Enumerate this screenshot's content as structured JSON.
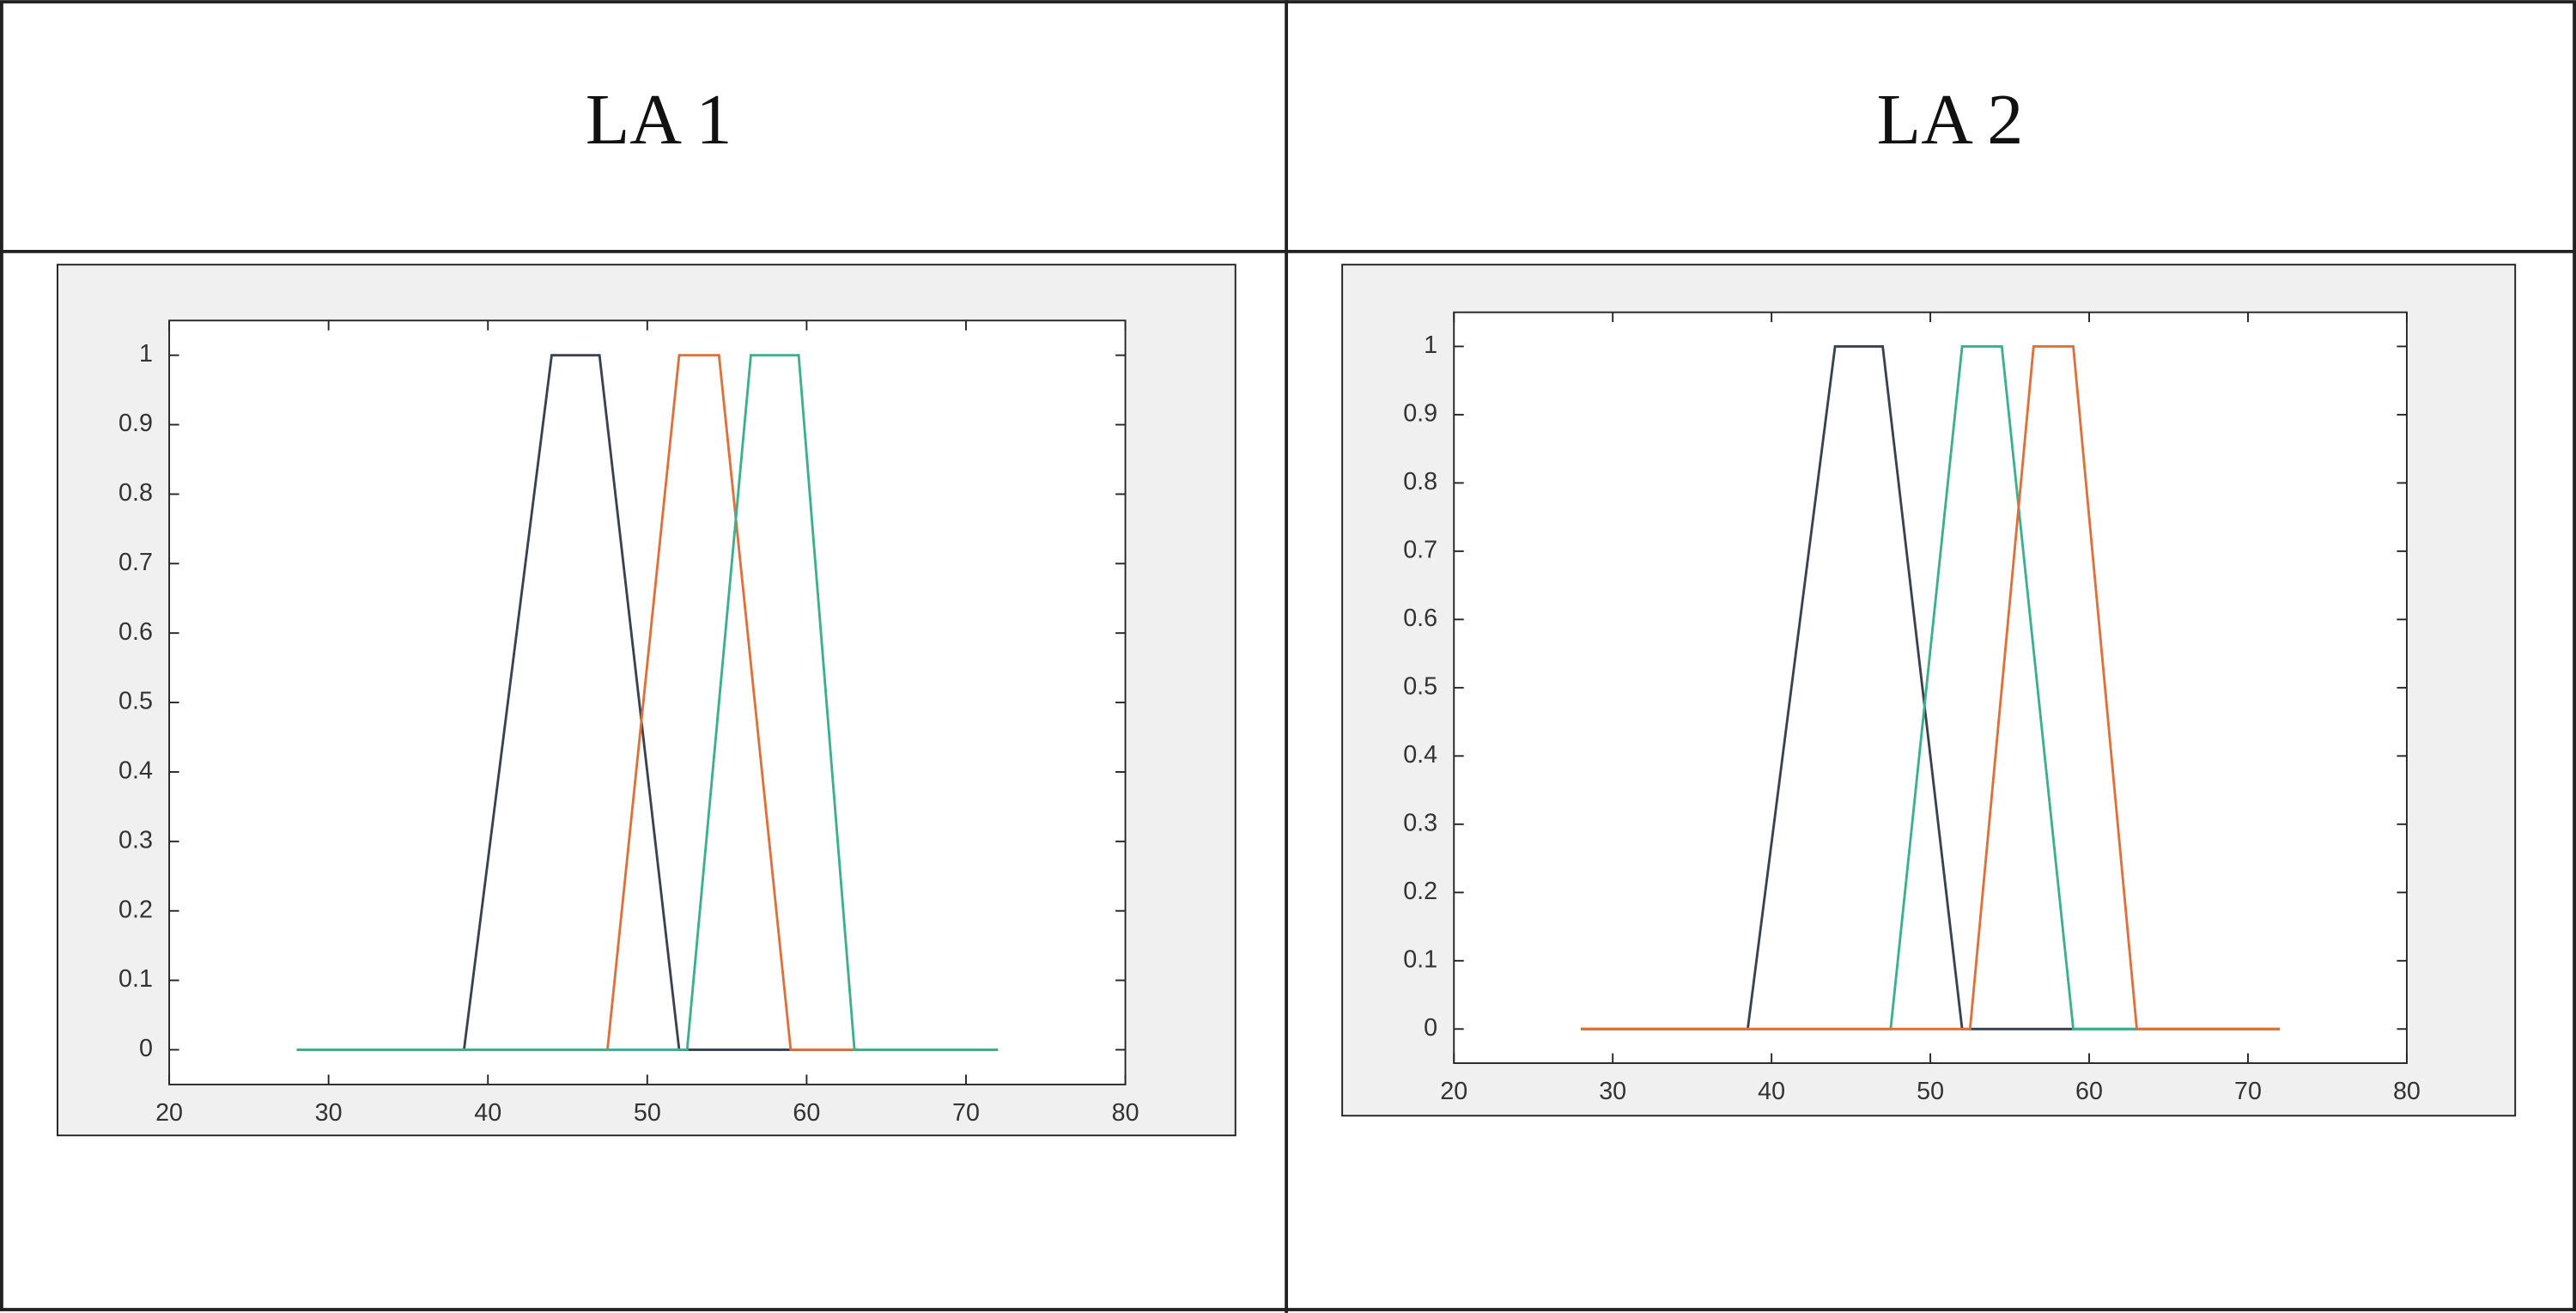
{
  "table": {
    "headers": [
      "LA 1",
      "LA 2"
    ]
  },
  "chart_data": [
    {
      "type": "line",
      "xlim": [
        20,
        80
      ],
      "ylim": [
        -0.05,
        1.05
      ],
      "xticks": [
        20,
        30,
        40,
        50,
        60,
        70,
        80
      ],
      "yticks": [
        0,
        0.1,
        0.2,
        0.3,
        0.4,
        0.5,
        0.6,
        0.7,
        0.8,
        0.9,
        1
      ],
      "series": [
        {
          "color": "#6ec6e8",
          "x": [
            28,
            72
          ],
          "values": [
            0,
            0
          ]
        },
        {
          "color": "#3a4250",
          "x": [
            28,
            38.5,
            44,
            47,
            52,
            72
          ],
          "values": [
            0,
            0,
            1,
            1,
            0,
            0
          ]
        },
        {
          "color": "#e0703a",
          "x": [
            28,
            47.5,
            52,
            54.5,
            59,
            72
          ],
          "values": [
            0,
            0,
            1,
            1,
            0,
            0
          ]
        },
        {
          "color": "#3cb08c",
          "x": [
            28,
            52.5,
            56.5,
            59.5,
            63,
            72
          ],
          "values": [
            0,
            0,
            1,
            1,
            0,
            0
          ]
        }
      ]
    },
    {
      "type": "line",
      "xlim": [
        20,
        80
      ],
      "ylim": [
        -0.05,
        1.05
      ],
      "xticks": [
        20,
        30,
        40,
        50,
        60,
        70,
        80
      ],
      "yticks": [
        0,
        0.1,
        0.2,
        0.3,
        0.4,
        0.5,
        0.6,
        0.7,
        0.8,
        0.9,
        1
      ],
      "series": [
        {
          "color": "#6ec6e8",
          "x": [
            28,
            72
          ],
          "values": [
            0,
            0
          ]
        },
        {
          "color": "#3a4250",
          "x": [
            28,
            38.5,
            44,
            47,
            52,
            72
          ],
          "values": [
            0,
            0,
            1,
            1,
            0,
            0
          ]
        },
        {
          "color": "#3cb08c",
          "x": [
            28,
            47.5,
            52,
            54.5,
            59,
            72
          ],
          "values": [
            0,
            0,
            1,
            1,
            0,
            0
          ]
        },
        {
          "color": "#e0703a",
          "x": [
            28,
            52.5,
            56.5,
            59,
            63,
            72
          ],
          "values": [
            0,
            0,
            1,
            1,
            0,
            0
          ]
        }
      ]
    }
  ]
}
